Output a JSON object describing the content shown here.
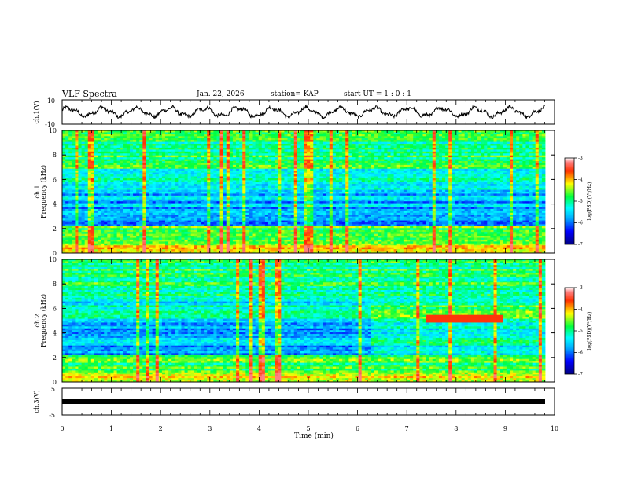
{
  "header": {
    "title": "VLF Spectra",
    "date": "Jan. 22, 2026",
    "station": "station= KAP",
    "start": "start  UT =  1 : 0  : 1"
  },
  "chart_data": [
    {
      "type": "line",
      "name": "ch1-waveform",
      "ylabel": "ch.1(V)",
      "ylim": [
        -10,
        10
      ],
      "ytick_labels": [
        "10",
        "-10"
      ],
      "xlim": [
        0,
        10
      ],
      "note": "dense VLF waveform oscillating roughly between -5 and 5 V over 0-9.8 min"
    },
    {
      "type": "heatmap",
      "name": "ch1-spectrogram",
      "ylabel": "ch.1  Frequency (kHz)",
      "ylim": [
        0,
        10
      ],
      "ytick_labels": [
        "0",
        "2",
        "4",
        "6",
        "8",
        "10"
      ],
      "xlim": [
        0,
        10
      ],
      "colorbar": {
        "label": "log(PSD)(V²/Hz)",
        "range": [
          -7,
          -3
        ],
        "tick_labels": [
          "-3",
          "-4",
          "-5",
          "-6",
          "-7"
        ]
      }
    },
    {
      "type": "heatmap",
      "name": "ch2-spectrogram",
      "ylabel": "ch.2  Frequency (kHz)",
      "ylim": [
        0,
        10
      ],
      "ytick_labels": [
        "0",
        "2",
        "4",
        "6",
        "8",
        "10"
      ],
      "xlim": [
        0,
        10
      ],
      "colorbar": {
        "label": "log(PSD)(V²/Hz)",
        "range": [
          -7,
          -3
        ],
        "tick_labels": [
          "-3",
          "-4",
          "-5",
          "-6",
          "-7"
        ]
      }
    },
    {
      "type": "line",
      "name": "ch3-waveform",
      "ylabel": "ch.3(V)",
      "ylim": [
        -5,
        5
      ],
      "ytick_labels": [
        "5",
        "-5"
      ],
      "xlim": [
        0,
        10
      ],
      "note": "near-constant signal around -1 V"
    }
  ],
  "xaxis": {
    "label": "Time  (min)",
    "tick_labels": [
      "0",
      "1",
      "2",
      "3",
      "4",
      "5",
      "6",
      "7",
      "8",
      "9",
      "10"
    ]
  }
}
